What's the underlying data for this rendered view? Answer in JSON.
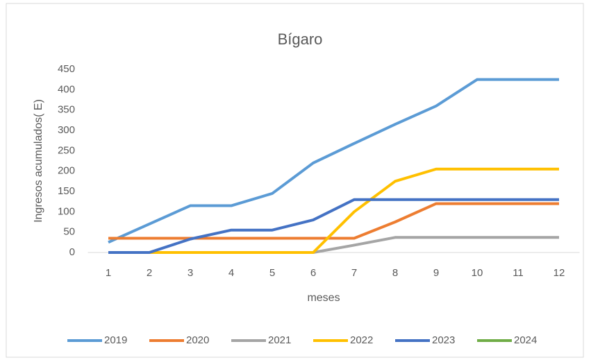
{
  "chart_data": {
    "type": "line",
    "title": "Bígaro",
    "x_label": "meses",
    "y_label": "Ingresos acumulados( E)",
    "categories": [
      "1",
      "2",
      "3",
      "4",
      "5",
      "6",
      "7",
      "8",
      "9",
      "10",
      "11",
      "12"
    ],
    "ylim": [
      0,
      450
    ],
    "yticks": [
      0,
      50,
      100,
      150,
      200,
      250,
      300,
      350,
      400,
      450
    ],
    "legend": "bottom",
    "series": [
      {
        "name": "2019",
        "color": "#5b9bd5",
        "values": [
          25,
          70,
          115,
          115,
          145,
          220,
          268,
          315,
          360,
          425,
          425,
          425
        ]
      },
      {
        "name": "2020",
        "color": "#ed7d31",
        "values": [
          35,
          35,
          35,
          35,
          35,
          35,
          35,
          75,
          120,
          120,
          120,
          120
        ]
      },
      {
        "name": "2021",
        "color": "#a5a5a5",
        "values": [
          0,
          0,
          0,
          0,
          0,
          0,
          18,
          37,
          37,
          37,
          37,
          37
        ]
      },
      {
        "name": "2022",
        "color": "#ffc000",
        "values": [
          0,
          0,
          0,
          0,
          0,
          0,
          100,
          175,
          205,
          205,
          205,
          205
        ]
      },
      {
        "name": "2023",
        "color": "#4472c4",
        "values": [
          0,
          0,
          33,
          55,
          55,
          80,
          130,
          130,
          130,
          130,
          130,
          130
        ]
      },
      {
        "name": "2024",
        "color": "#70ad47",
        "values": [
          null,
          null,
          null,
          null,
          null,
          null,
          null,
          null,
          null,
          null,
          null,
          null
        ]
      }
    ]
  }
}
